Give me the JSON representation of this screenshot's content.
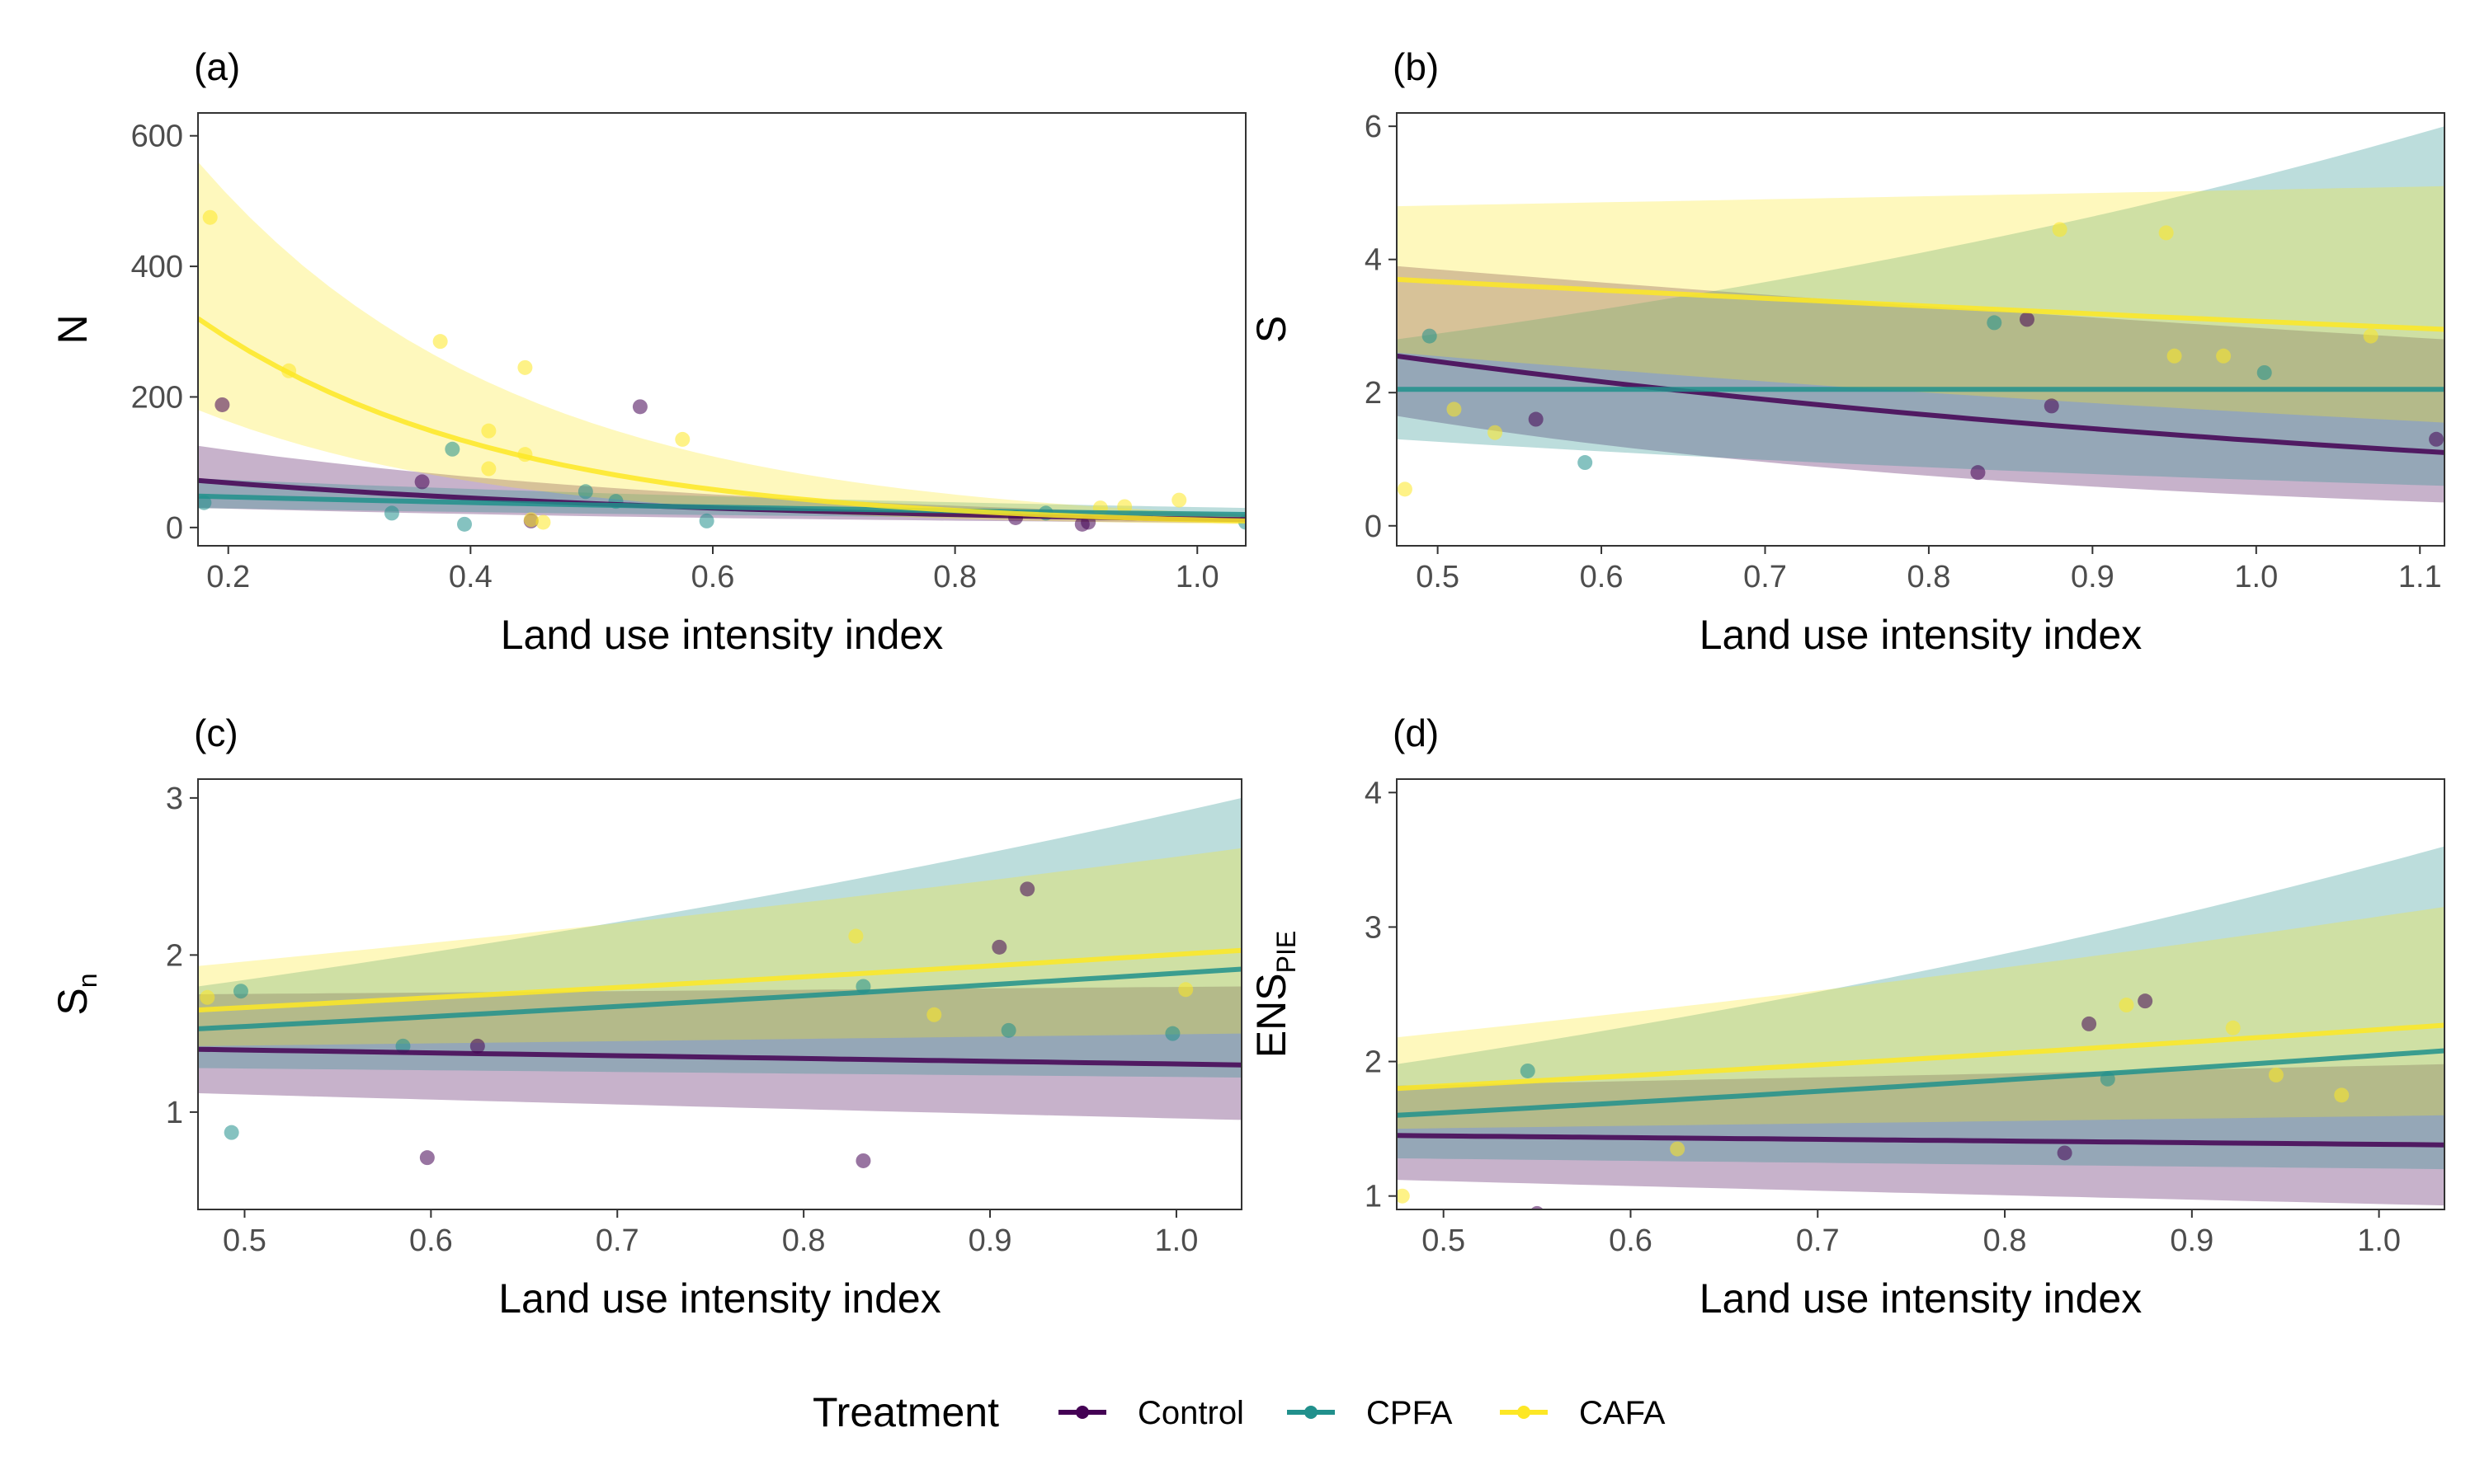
{
  "colors": {
    "Control": "#440154",
    "CPFA": "#21908C",
    "CAFA": "#FDE725"
  },
  "legend": {
    "title": "Treatment",
    "entries": [
      "Control",
      "CPFA",
      "CAFA"
    ]
  },
  "chart_data": [
    {
      "type": "scatter",
      "panel": "(a)",
      "xlabel": "Land use intensity index",
      "ylabel": "N",
      "xlim": [
        0.175,
        1.04
      ],
      "ylim": [
        -28,
        635
      ],
      "xticks": [
        0.2,
        0.4,
        0.6,
        0.8,
        1.0
      ],
      "xtick_labels": [
        "0.2",
        "0.4",
        "0.6",
        "0.8",
        "1.0"
      ],
      "yticks": [
        0,
        200,
        400,
        600
      ],
      "ytick_labels": [
        "0",
        "200",
        "400",
        "600"
      ],
      "grid": false,
      "series": [
        {
          "name": "Control",
          "points": [
            [
              0.195,
              188
            ],
            [
              0.36,
              70
            ],
            [
              0.45,
              10
            ],
            [
              0.54,
              185
            ],
            [
              0.85,
              15
            ],
            [
              0.905,
              5
            ],
            [
              0.91,
              8
            ]
          ],
          "fit_x": [
            0.175,
            1.04
          ],
          "fit_y": [
            72,
            12
          ],
          "ci_lower": [
            30,
            7
          ],
          "ci_upper": [
            125,
            20
          ]
        },
        {
          "name": "CPFA",
          "points": [
            [
              0.18,
              38
            ],
            [
              0.335,
              22
            ],
            [
              0.385,
              120
            ],
            [
              0.395,
              5
            ],
            [
              0.495,
              55
            ],
            [
              0.52,
              40
            ],
            [
              0.595,
              10
            ],
            [
              0.875,
              22
            ],
            [
              1.04,
              8
            ]
          ],
          "fit_x": [
            0.175,
            1.04
          ],
          "fit_y": [
            48,
            20
          ],
          "ci_lower": [
            30,
            12
          ],
          "ci_upper": [
            75,
            30
          ]
        },
        {
          "name": "CAFA",
          "points": [
            [
              0.185,
              475
            ],
            [
              0.25,
              240
            ],
            [
              0.375,
              285
            ],
            [
              0.415,
              148
            ],
            [
              0.415,
              90
            ],
            [
              0.445,
              112
            ],
            [
              0.445,
              245
            ],
            [
              0.45,
              12
            ],
            [
              0.46,
              8
            ],
            [
              0.575,
              135
            ],
            [
              0.92,
              30
            ],
            [
              0.94,
              32
            ],
            [
              0.985,
              42
            ]
          ],
          "fit_x": [
            0.175,
            1.04
          ],
          "fit_y": [
            320,
            10
          ],
          "ci_lower": [
            180,
            5
          ],
          "ci_upper": [
            560,
            20
          ]
        }
      ]
    },
    {
      "type": "scatter",
      "panel": "(b)",
      "xlabel": "Land use intensity index",
      "ylabel": "S",
      "xlim": [
        0.475,
        1.115
      ],
      "ylim": [
        -0.3,
        6.2
      ],
      "xticks": [
        0.5,
        0.6,
        0.7,
        0.8,
        0.9,
        1.0,
        1.1
      ],
      "xtick_labels": [
        "0.5",
        "0.6",
        "0.7",
        "0.8",
        "0.9",
        "1.0",
        "1.1"
      ],
      "yticks": [
        0,
        2,
        4,
        6
      ],
      "ytick_labels": [
        "0",
        "2",
        "4",
        "6"
      ],
      "grid": false,
      "series": [
        {
          "name": "Control",
          "points": [
            [
              0.56,
              1.6
            ],
            [
              0.83,
              0.8
            ],
            [
              0.86,
              3.1
            ],
            [
              0.875,
              1.8
            ],
            [
              1.11,
              1.3
            ]
          ],
          "fit_x": [
            0.475,
            1.115
          ],
          "fit_y": [
            2.55,
            1.1
          ],
          "ci_lower": [
            1.65,
            0.35
          ],
          "ci_upper": [
            3.9,
            2.8
          ]
        },
        {
          "name": "CPFA",
          "points": [
            [
              0.495,
              2.85
            ],
            [
              0.59,
              0.95
            ],
            [
              0.84,
              3.05
            ],
            [
              1.005,
              2.3
            ]
          ],
          "fit_x": [
            0.475,
            1.115
          ],
          "fit_y": [
            2.05,
            2.05
          ],
          "ci_lower": [
            1.3,
            0.6
          ],
          "ci_upper": [
            2.8,
            6.0
          ]
        },
        {
          "name": "CAFA",
          "points": [
            [
              0.48,
              0.55
            ],
            [
              0.51,
              1.75
            ],
            [
              0.535,
              1.4
            ],
            [
              0.88,
              4.45
            ],
            [
              0.945,
              4.4
            ],
            [
              0.95,
              2.55
            ],
            [
              0.98,
              2.55
            ],
            [
              1.07,
              2.85
            ]
          ],
          "fit_x": [
            0.475,
            1.115
          ],
          "fit_y": [
            3.7,
            2.95
          ],
          "ci_lower": [
            2.6,
            1.55
          ],
          "ci_upper": [
            4.8,
            5.1
          ]
        }
      ]
    },
    {
      "type": "scatter",
      "panel": "(c)",
      "xlabel": "Land use intensity index",
      "ylabel": "Sₙ",
      "xlim": [
        0.475,
        1.035
      ],
      "ylim": [
        0.38,
        3.12
      ],
      "xticks": [
        0.5,
        0.6,
        0.7,
        0.8,
        0.9,
        1.0
      ],
      "xtick_labels": [
        "0.5",
        "0.6",
        "0.7",
        "0.8",
        "0.9",
        "1.0"
      ],
      "yticks": [
        1,
        2,
        3
      ],
      "ytick_labels": [
        "1",
        "2",
        "3"
      ],
      "grid": false,
      "series": [
        {
          "name": "Control",
          "points": [
            [
              0.598,
              0.71
            ],
            [
              0.625,
              1.42
            ],
            [
              0.832,
              0.69
            ],
            [
              0.905,
              2.05
            ],
            [
              0.92,
              2.42
            ]
          ],
          "fit_x": [
            0.475,
            1.035
          ],
          "fit_y": [
            1.4,
            1.3
          ],
          "ci_lower": [
            1.12,
            0.95
          ],
          "ci_upper": [
            1.75,
            1.8
          ]
        },
        {
          "name": "CPFA",
          "points": [
            [
              0.493,
              0.87
            ],
            [
              0.498,
              1.77
            ],
            [
              0.585,
              1.42
            ],
            [
              0.832,
              1.8
            ],
            [
              0.91,
              1.52
            ],
            [
              0.998,
              1.5
            ]
          ],
          "fit_x": [
            0.475,
            1.035
          ],
          "fit_y": [
            1.53,
            1.91
          ],
          "ci_lower": [
            1.28,
            1.22
          ],
          "ci_upper": [
            1.8,
            3.0
          ]
        },
        {
          "name": "CAFA",
          "points": [
            [
              0.48,
              1.73
            ],
            [
              0.828,
              2.12
            ],
            [
              0.87,
              1.62
            ],
            [
              1.005,
              1.78
            ]
          ],
          "fit_x": [
            0.475,
            1.035
          ],
          "fit_y": [
            1.65,
            2.03
          ],
          "ci_lower": [
            1.42,
            1.5
          ],
          "ci_upper": [
            1.93,
            2.68
          ]
        }
      ]
    },
    {
      "type": "scatter",
      "panel": "(d)",
      "xlabel": "Land use intensity index",
      "ylabel": "ENSₚᵢₑ",
      "ylabel_main": "ENS",
      "ylabel_sub": "PIE",
      "xlim": [
        0.475,
        1.035
      ],
      "ylim": [
        0.9,
        4.1
      ],
      "xticks": [
        0.5,
        0.6,
        0.7,
        0.8,
        0.9,
        1.0
      ],
      "xtick_labels": [
        "0.5",
        "0.6",
        "0.7",
        "0.8",
        "0.9",
        "1.0"
      ],
      "yticks": [
        1,
        2,
        3,
        4
      ],
      "ytick_labels": [
        "1",
        "2",
        "3",
        "4"
      ],
      "grid": false,
      "series": [
        {
          "name": "Control",
          "points": [
            [
              0.55,
              0.87
            ],
            [
              0.832,
              1.32
            ],
            [
              0.845,
              2.28
            ],
            [
              0.875,
              2.45
            ]
          ],
          "fit_x": [
            0.475,
            1.035
          ],
          "fit_y": [
            1.45,
            1.38
          ],
          "ci_lower": [
            1.12,
            0.93
          ],
          "ci_upper": [
            1.82,
            1.98
          ]
        },
        {
          "name": "CPFA",
          "points": [
            [
              0.545,
              1.93
            ],
            [
              0.855,
              1.87
            ]
          ],
          "fit_x": [
            0.475,
            1.035
          ],
          "fit_y": [
            1.6,
            2.08
          ],
          "ci_lower": [
            1.28,
            1.2
          ],
          "ci_upper": [
            1.98,
            3.6
          ]
        },
        {
          "name": "CAFA",
          "points": [
            [
              0.478,
              1.0
            ],
            [
              0.625,
              1.35
            ],
            [
              0.865,
              2.42
            ],
            [
              0.922,
              2.25
            ],
            [
              0.945,
              1.9
            ],
            [
              0.98,
              1.75
            ]
          ],
          "fit_x": [
            0.475,
            1.035
          ],
          "fit_y": [
            1.8,
            2.27
          ],
          "ci_lower": [
            1.5,
            1.6
          ],
          "ci_upper": [
            2.18,
            3.15
          ]
        }
      ]
    }
  ]
}
